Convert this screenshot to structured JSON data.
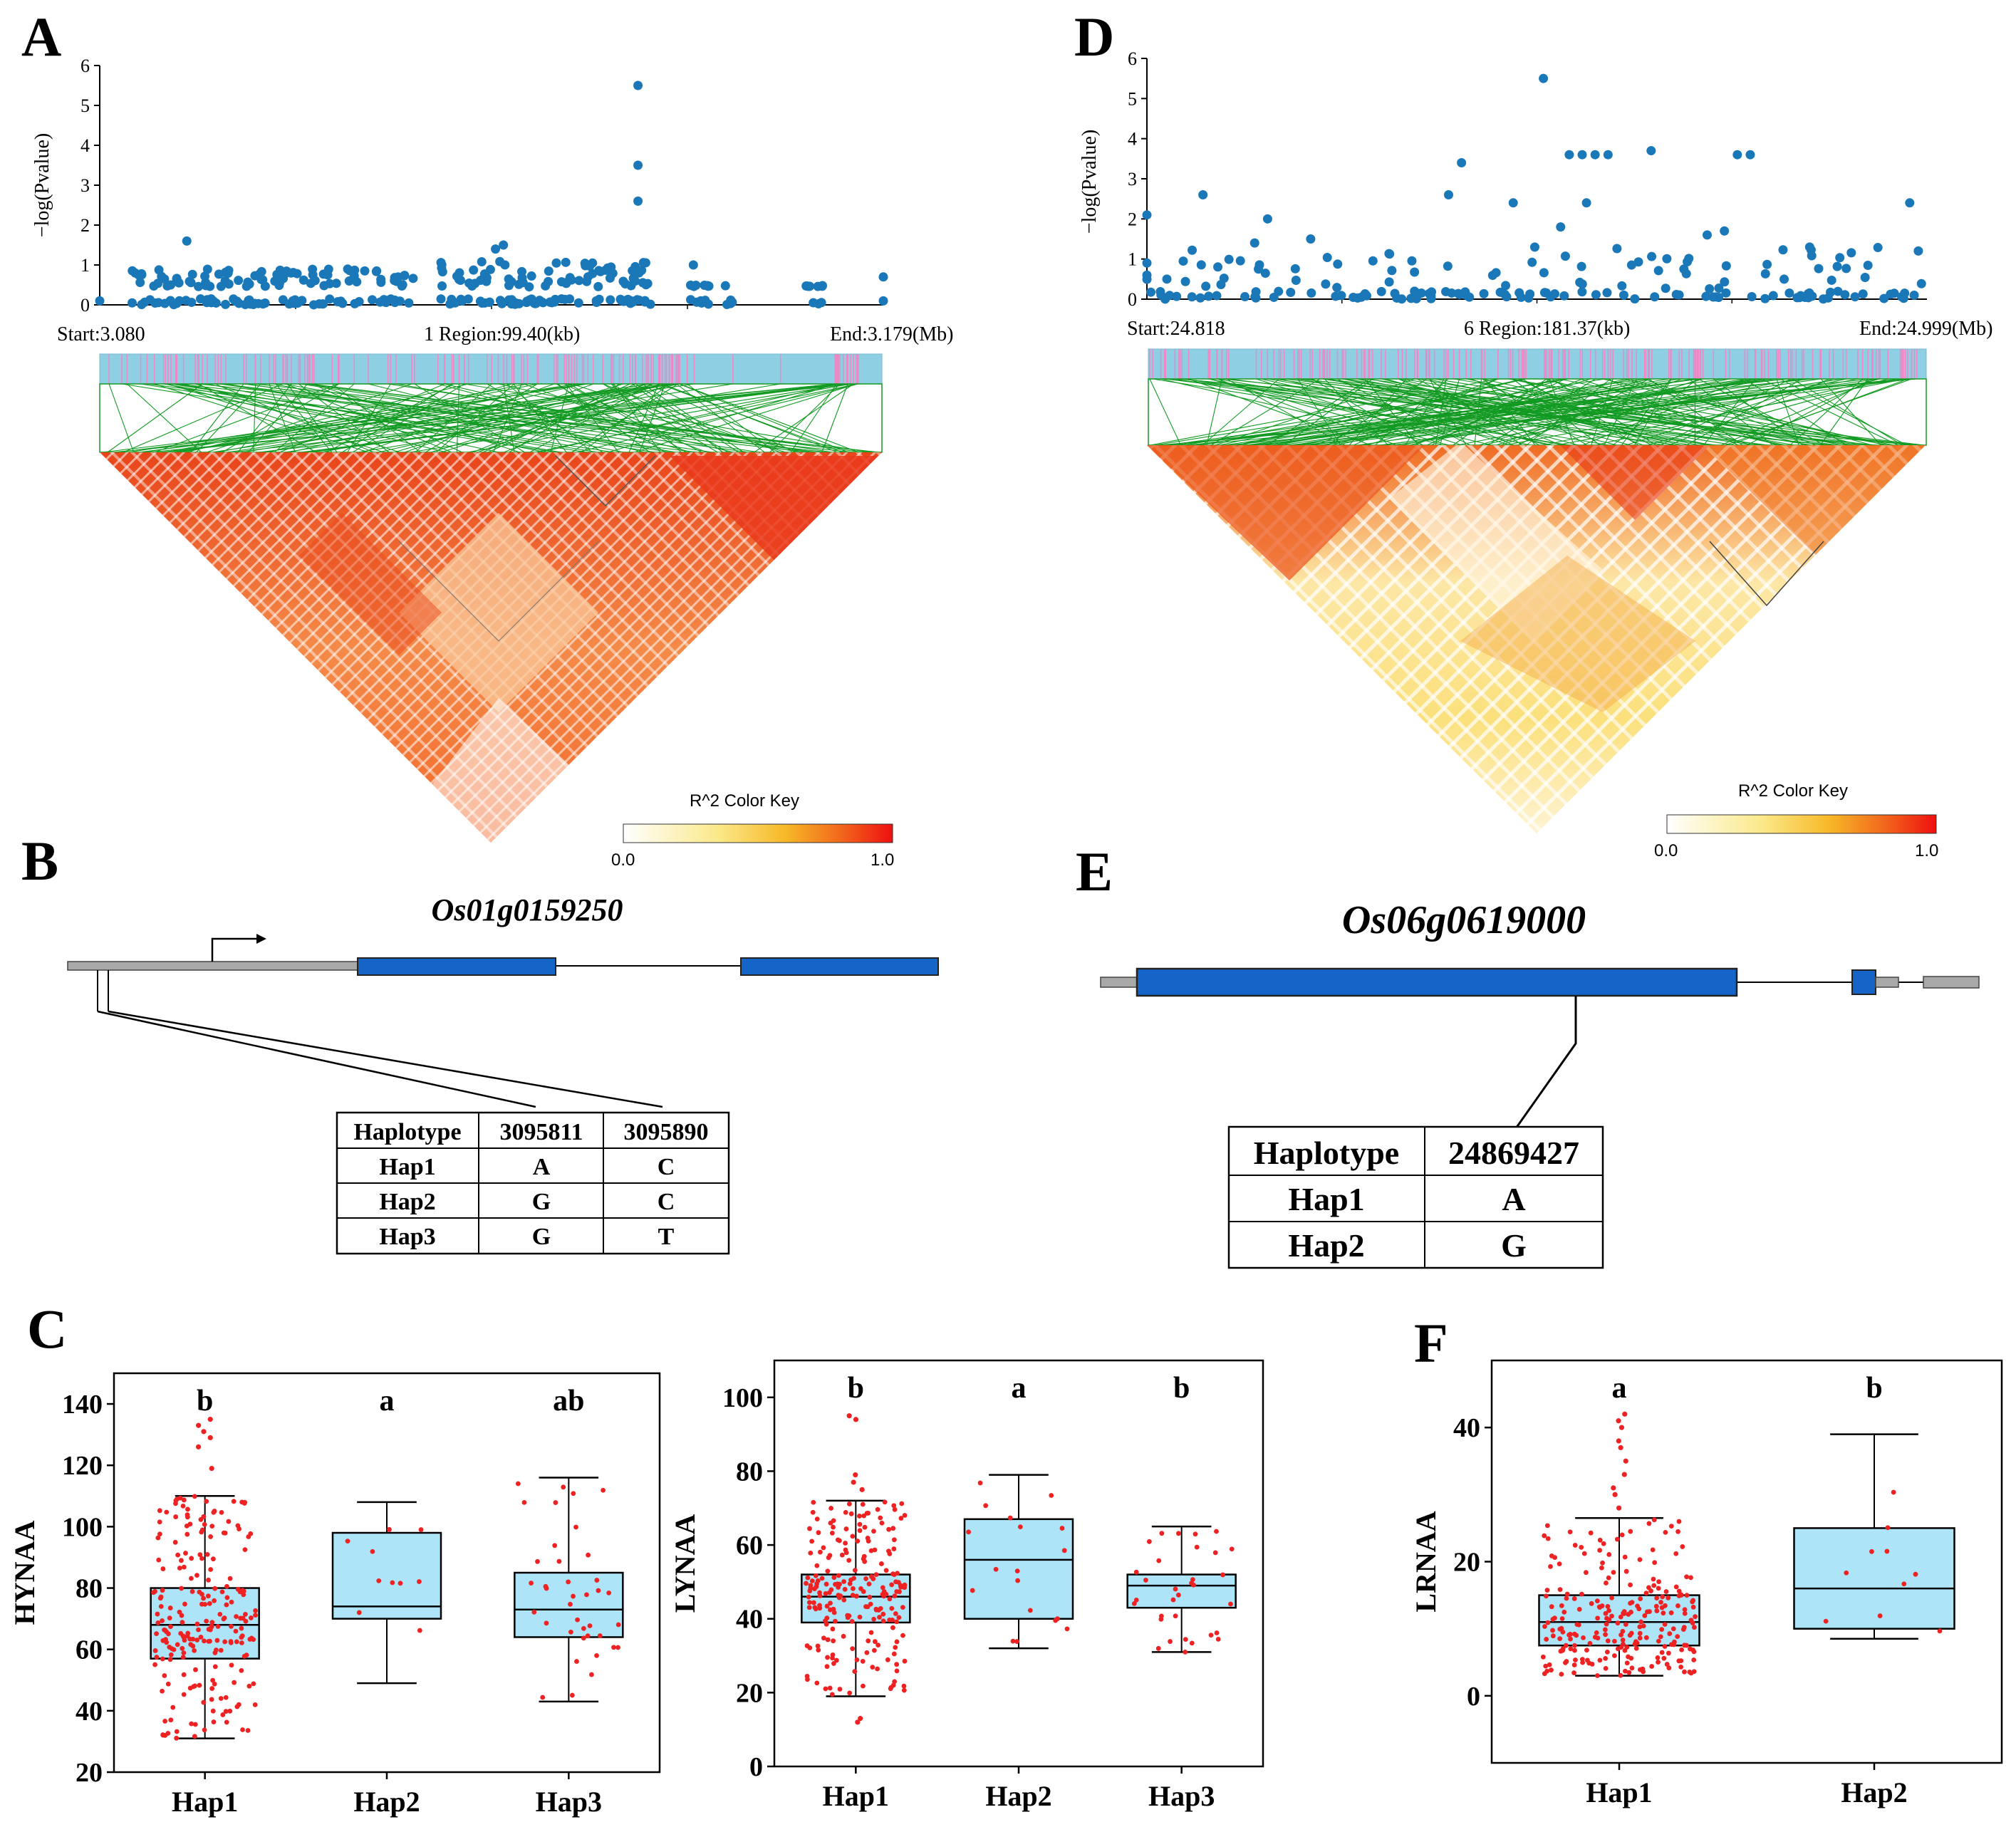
{
  "panels": {
    "A": "A",
    "B": "B",
    "C": "C",
    "D": "D",
    "E": "E",
    "F": "F"
  },
  "colors": {
    "manhattan_point": "#1a78b8",
    "track_bg": "#8fcfe4",
    "track_snp": "#ee88c4",
    "ld_line": "#129a22",
    "box_fill": "#aee4f8",
    "jitter": "#ee2222",
    "ld_low": "#fff6cf",
    "ld_mid": "#f6a13a",
    "ld_high": "#e83515",
    "gene_exon": "#1565c8",
    "gene_utr": "#a8a8a8"
  },
  "chart_data": [
    {
      "id": "A-manhattan",
      "type": "scatter",
      "ylabel": "−log(Pvalue)",
      "yticks": [
        "0",
        "1",
        "2",
        "3",
        "4",
        "5",
        "6"
      ],
      "ylim": [
        0,
        6
      ],
      "xlim": [
        3.08,
        3.179
      ],
      "region": {
        "start": "Start:3.080",
        "center": "1 Region:99.40(kb)",
        "end": "End:3.179(Mb)"
      },
      "top_hits": [
        {
          "x": 3.148,
          "y": 5.5
        },
        {
          "x": 3.148,
          "y": 3.5
        },
        {
          "x": 3.148,
          "y": 2.6
        }
      ],
      "clusters": [
        {
          "x0": 3.084,
          "x1": 3.12,
          "ymax": 0.9,
          "n": 150
        },
        {
          "x0": 3.123,
          "x1": 3.15,
          "ymax": 1.1,
          "n": 130
        },
        {
          "x0": 3.154,
          "x1": 3.16,
          "ymax": 0.5,
          "n": 18
        },
        {
          "x0": 3.169,
          "x1": 3.172,
          "ymax": 0.5,
          "n": 10
        }
      ],
      "extra_points": [
        {
          "x": 3.08,
          "y": 0.1
        },
        {
          "x": 3.091,
          "y": 1.6
        },
        {
          "x": 3.13,
          "y": 1.4
        },
        {
          "x": 3.131,
          "y": 1.5
        },
        {
          "x": 3.155,
          "y": 1.0
        },
        {
          "x": 3.179,
          "y": 0.7
        },
        {
          "x": 3.179,
          "y": 0.1
        }
      ]
    },
    {
      "id": "D-manhattan",
      "type": "scatter",
      "ylabel": "−log(Pvalue)",
      "yticks": [
        "0",
        "1",
        "2",
        "3",
        "4",
        "5",
        "6"
      ],
      "ylim": [
        0,
        6
      ],
      "xlim": [
        24.818,
        24.999
      ],
      "region": {
        "start": "Start:24.818",
        "center": "6 Region:181.37(kb)",
        "end": "End:24.999(Mb)"
      },
      "points": [
        {
          "x": 24.818,
          "y": 2.1
        },
        {
          "x": 24.818,
          "y": 0.6
        },
        {
          "x": 24.818,
          "y": 0.9
        },
        {
          "x": 24.831,
          "y": 2.6
        },
        {
          "x": 24.843,
          "y": 1.4
        },
        {
          "x": 24.846,
          "y": 2.0
        },
        {
          "x": 24.856,
          "y": 1.5
        },
        {
          "x": 24.888,
          "y": 2.6
        },
        {
          "x": 24.891,
          "y": 3.4
        },
        {
          "x": 24.903,
          "y": 2.4
        },
        {
          "x": 24.91,
          "y": 5.5
        },
        {
          "x": 24.916,
          "y": 3.6
        },
        {
          "x": 24.919,
          "y": 3.6
        },
        {
          "x": 24.922,
          "y": 3.6
        },
        {
          "x": 24.925,
          "y": 3.6
        },
        {
          "x": 24.935,
          "y": 3.7
        },
        {
          "x": 24.955,
          "y": 3.6
        },
        {
          "x": 24.958,
          "y": 3.6
        },
        {
          "x": 24.995,
          "y": 2.4
        },
        {
          "x": 24.914,
          "y": 1.8
        },
        {
          "x": 24.92,
          "y": 2.4
        },
        {
          "x": 24.948,
          "y": 1.6
        },
        {
          "x": 24.952,
          "y": 1.7
        },
        {
          "x": 24.997,
          "y": 1.2
        }
      ],
      "background_n": 170,
      "background_ymax": 1.3
    },
    {
      "id": "C-HYNAA",
      "type": "box",
      "ylabel": "HYNAA",
      "ylim": [
        20,
        150
      ],
      "yticks": [
        20,
        40,
        60,
        80,
        100,
        120,
        140
      ],
      "categories": [
        "Hap1",
        "Hap2",
        "Hap3"
      ],
      "letters": [
        "b",
        "a",
        "ab"
      ],
      "boxes": [
        {
          "min": 31,
          "q1": 57,
          "median": 68,
          "q3": 80,
          "max": 110,
          "n": 220,
          "outliers": [
            119,
            126,
            129,
            131,
            133,
            135
          ]
        },
        {
          "min": 49,
          "q1": 70,
          "median": 74,
          "q3": 98,
          "max": 108,
          "n": 10,
          "outliers": []
        },
        {
          "min": 43,
          "q1": 64,
          "median": 73,
          "q3": 85,
          "max": 116,
          "n": 38,
          "outliers": []
        }
      ]
    },
    {
      "id": "C-LYNAA",
      "type": "box",
      "ylabel": "LYNAA",
      "ylim": [
        0,
        110
      ],
      "yticks": [
        0,
        20,
        40,
        60,
        80,
        100
      ],
      "categories": [
        "Hap1",
        "Hap2",
        "Hap3"
      ],
      "letters": [
        "b",
        "a",
        "b"
      ],
      "boxes": [
        {
          "min": 19,
          "q1": 39,
          "median": 46,
          "q3": 52,
          "max": 72,
          "n": 220,
          "outliers": [
            12,
            13,
            75,
            77,
            79,
            94,
            95
          ]
        },
        {
          "min": 32,
          "q1": 40,
          "median": 56,
          "q3": 67,
          "max": 79,
          "n": 18,
          "outliers": []
        },
        {
          "min": 31,
          "q1": 43,
          "median": 49,
          "q3": 52,
          "max": 65,
          "n": 32,
          "outliers": []
        }
      ]
    },
    {
      "id": "F-LRNAA",
      "type": "box",
      "ylabel": "LRNAA",
      "ylim": [
        -10,
        50
      ],
      "yticks": [
        0,
        20,
        40
      ],
      "categories": [
        "Hap1",
        "Hap2"
      ],
      "letters": [
        "a",
        "b"
      ],
      "boxes": [
        {
          "min": 3,
          "q1": 7.5,
          "median": 11,
          "q3": 15,
          "max": 26.5,
          "n": 240,
          "outliers": [
            28,
            30,
            31,
            33,
            35,
            37,
            38,
            40,
            41,
            42
          ]
        },
        {
          "min": 8.5,
          "q1": 10,
          "median": 16,
          "q3": 25,
          "max": 39,
          "n": 10,
          "outliers": []
        }
      ]
    }
  ],
  "colorkeys": [
    {
      "title": "R^2 Color Key",
      "min": "0.0",
      "max": "1.0"
    },
    {
      "title": "R^2 Color Key",
      "min": "0.0",
      "max": "1.0"
    }
  ],
  "geneB": {
    "name": "Os01g0159250",
    "table": {
      "header": [
        "Haplotype",
        "3095811",
        "3095890"
      ],
      "rows": [
        [
          "Hap1",
          "A",
          "C"
        ],
        [
          "Hap2",
          "G",
          "C"
        ],
        [
          "Hap3",
          "G",
          "T"
        ]
      ]
    }
  },
  "geneE": {
    "name": "Os06g0619000",
    "table": {
      "header": [
        "Haplotype",
        "24869427"
      ],
      "rows": [
        [
          "Hap1",
          "A"
        ],
        [
          "Hap2",
          "G"
        ]
      ]
    }
  }
}
